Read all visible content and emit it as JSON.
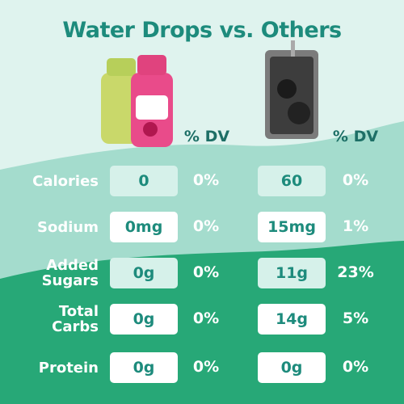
{
  "title": "Water Drops vs. Others",
  "columns": [
    {
      "dv_header": "% DV"
    },
    {
      "dv_header": "% DV"
    }
  ],
  "rows": [
    {
      "label": "Calories",
      "water_drops": "0",
      "water_drops_dv": "0%",
      "others": "60",
      "others_dv": "0%"
    },
    {
      "label": "Sodium",
      "water_drops": "0mg",
      "water_drops_dv": "0%",
      "others": "15mg",
      "others_dv": "1%"
    },
    {
      "label": "Added\nSugars",
      "water_drops": "0g",
      "water_drops_dv": "0%",
      "others": "11g",
      "others_dv": "23%"
    },
    {
      "label": "Total\nCarbs",
      "water_drops": "0g",
      "water_drops_dv": "0%",
      "others": "14g",
      "others_dv": "5%"
    },
    {
      "label": "Protein",
      "water_drops": "0g",
      "water_drops_dv": "0%",
      "others": "0g",
      "others_dv": "0%"
    }
  ]
}
